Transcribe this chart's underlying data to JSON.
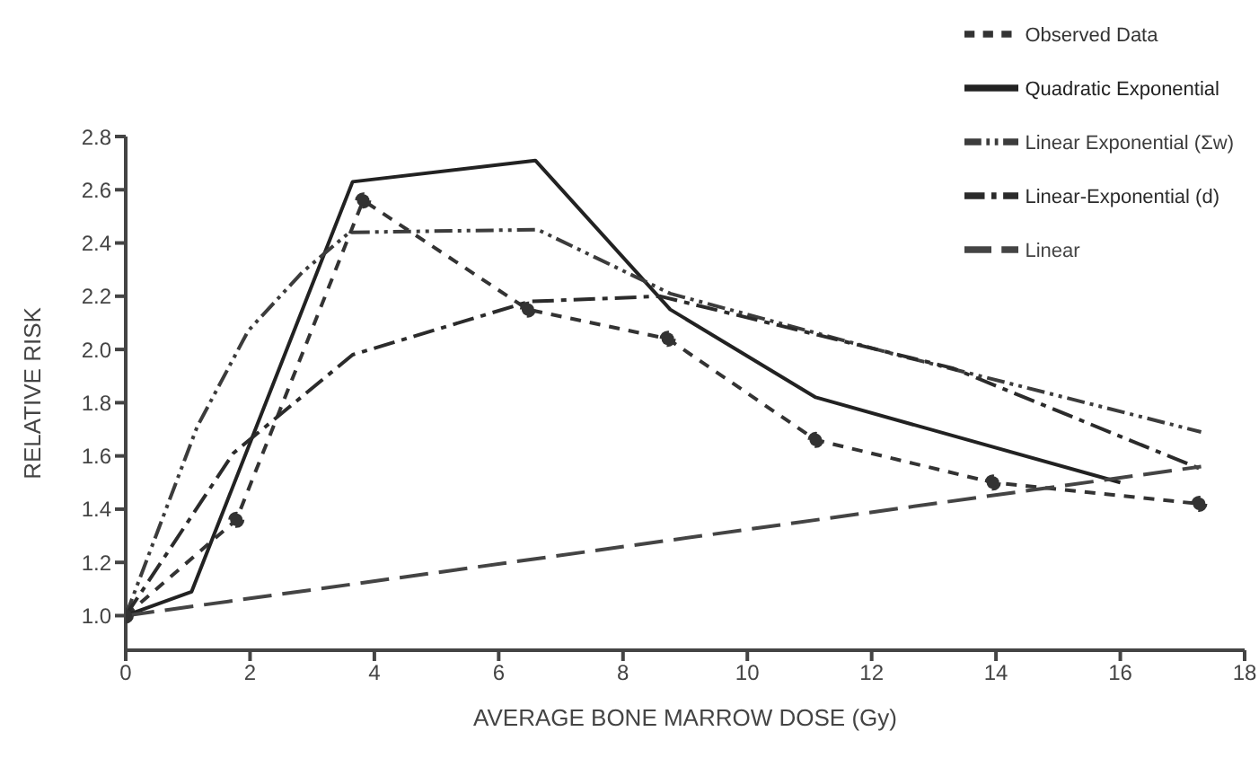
{
  "chart_data": {
    "type": "line",
    "xlabel": "AVERAGE BONE MARROW DOSE (Gy)",
    "ylabel": "RELATIVE RISK",
    "xlim": [
      0,
      18
    ],
    "xticks": [
      0,
      2,
      4,
      6,
      8,
      10,
      12,
      14,
      16,
      18
    ],
    "ylim": [
      0.87,
      2.8
    ],
    "yticks": [
      {
        "value": 1.0,
        "label": "1.0"
      },
      {
        "value": 1.2,
        "label": "1.2"
      },
      {
        "value": 1.4,
        "label": "1.4"
      },
      {
        "value": 1.6,
        "label": "1.6"
      },
      {
        "value": 1.8,
        "label": "1.8"
      },
      {
        "value": 2.0,
        "label": "2.0"
      },
      {
        "value": 2.2,
        "label": "2.2"
      },
      {
        "value": 2.4,
        "label": "2.4"
      },
      {
        "value": 2.6,
        "label": "2.6"
      },
      {
        "value": 2.8,
        "label": "2.8"
      }
    ],
    "grid": false,
    "legend": "top right",
    "series": [
      {
        "name": "Observed Data",
        "color": "#333333",
        "line_style": "dashed",
        "marker": "circle",
        "x": [
          0,
          1.78,
          3.82,
          6.47,
          8.72,
          11.1,
          13.95,
          17.27
        ],
        "values": [
          1.0,
          1.36,
          2.56,
          2.15,
          2.04,
          1.66,
          1.5,
          1.42
        ]
      },
      {
        "name": "Quadratic Exponential",
        "color": "#222222",
        "line_style": "solid",
        "marker": "none",
        "x": [
          0,
          1.06,
          3.65,
          6.59,
          8.76,
          11.1,
          16.0
        ],
        "values": [
          1.0,
          1.09,
          2.63,
          2.71,
          2.15,
          1.82,
          1.5
        ]
      },
      {
        "name": "Linear Exponential (Σw)",
        "color": "#3c3c3c",
        "line_style": "dashed",
        "marker": "none",
        "x": [
          0,
          1.15,
          1.97,
          2.84,
          3.6,
          6.63,
          8.76,
          12.4,
          17.3
        ],
        "values": [
          1.0,
          1.71,
          2.07,
          2.29,
          2.44,
          2.45,
          2.21,
          1.98,
          1.69
        ]
      },
      {
        "name": "Linear-Exponential (d)",
        "color": "#2b2b2b",
        "line_style": "dashed",
        "marker": "none",
        "x": [
          0,
          1.73,
          3.65,
          6.49,
          8.6,
          13.3,
          17.3
        ],
        "values": [
          1.0,
          1.61,
          1.98,
          2.18,
          2.2,
          1.93,
          1.55
        ]
      },
      {
        "name": "Linear",
        "color": "#444444",
        "line_style": "dashed",
        "marker": "none",
        "x": [
          0,
          17.3
        ],
        "values": [
          1.0,
          1.56
        ]
      }
    ]
  }
}
